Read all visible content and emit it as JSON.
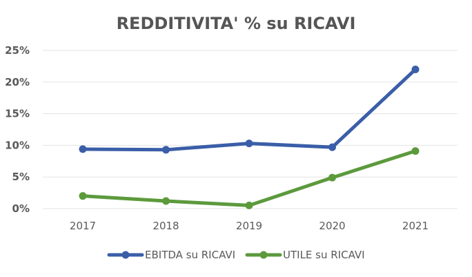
{
  "chart_data": {
    "type": "line",
    "title": "REDDITIVITA' % su RICAVI",
    "xlabel": "",
    "ylabel": "",
    "categories": [
      "2017",
      "2018",
      "2019",
      "2020",
      "2021"
    ],
    "y_ticks": [
      "0%",
      "5%",
      "10%",
      "15%",
      "20%",
      "25%"
    ],
    "ylim": [
      0,
      25
    ],
    "grid": true,
    "legend_position": "bottom",
    "series": [
      {
        "name": "EBITDA su RICAVI",
        "color": "#3a5ea8",
        "values": [
          9.4,
          9.3,
          10.3,
          9.7,
          22.0
        ]
      },
      {
        "name": "UTILE su RICAVI",
        "color": "#5c9a3c",
        "values": [
          2.0,
          1.2,
          0.5,
          4.9,
          9.1
        ]
      }
    ]
  }
}
